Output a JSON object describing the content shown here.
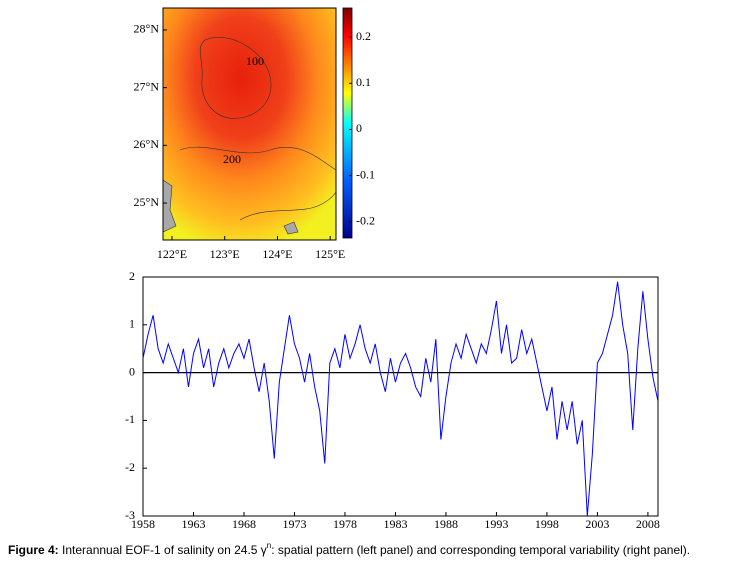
{
  "map": {
    "latlim": [
      24.36,
      28.38
    ],
    "lonlim": [
      121.83,
      125.11
    ],
    "latticks": [
      {
        "value": 28,
        "label": "28°N"
      },
      {
        "value": 27,
        "label": "27°N"
      },
      {
        "value": 26,
        "label": "26°N"
      },
      {
        "value": 25,
        "label": "25°N"
      }
    ],
    "lonticks": [
      {
        "value": 122,
        "label": "122°E"
      },
      {
        "value": 123,
        "label": "123°E"
      },
      {
        "value": 124,
        "label": "124°E"
      },
      {
        "value": 125,
        "label": "125°E"
      }
    ],
    "contour_labels": [
      "100",
      "200"
    ],
    "colorbar": {
      "lim": [
        -0.235,
        0.263
      ],
      "ticks": [
        0.2,
        0.1,
        0,
        -0.1,
        -0.2
      ]
    }
  },
  "chart_data": {
    "type": "line",
    "xlim": [
      1958,
      2009
    ],
    "ylim": [
      -3,
      2
    ],
    "xticks": [
      1958,
      1963,
      1968,
      1973,
      1978,
      1983,
      1988,
      1993,
      1998,
      2003,
      2008
    ],
    "yticks": [
      2,
      1,
      0,
      -1,
      -2,
      -3
    ],
    "series": [
      {
        "color": "#0000ff",
        "x": [
          1958,
          1958.5,
          1959,
          1959.5,
          1960,
          1960.5,
          1961,
          1961.5,
          1962,
          1962.5,
          1963,
          1963.5,
          1964,
          1964.5,
          1965,
          1965.5,
          1966,
          1966.5,
          1967,
          1967.5,
          1968,
          1968.5,
          1969,
          1969.5,
          1970,
          1970.5,
          1971,
          1971.5,
          1972,
          1972.5,
          1973,
          1973.5,
          1974,
          1974.5,
          1975,
          1975.5,
          1976,
          1976.5,
          1977,
          1977.5,
          1978,
          1978.5,
          1979,
          1979.5,
          1980,
          1980.5,
          1981,
          1981.5,
          1982,
          1982.5,
          1983,
          1983.5,
          1984,
          1984.5,
          1985,
          1985.5,
          1986,
          1986.5,
          1987,
          1987.5,
          1988,
          1988.5,
          1989,
          1989.5,
          1990,
          1990.5,
          1991,
          1991.5,
          1992,
          1992.5,
          1993,
          1993.5,
          1994,
          1994.5,
          1995,
          1995.5,
          1996,
          1996.5,
          1997,
          1997.5,
          1998,
          1998.5,
          1999,
          1999.5,
          2000,
          2000.5,
          2001,
          2001.5,
          2002,
          2002.5,
          2003,
          2003.5,
          2004,
          2004.5,
          2005,
          2005.5,
          2006,
          2006.5,
          2007,
          2007.5,
          2008,
          2008.5,
          2009
        ],
        "values": [
          0.3,
          0.8,
          1.2,
          0.5,
          0.2,
          0.6,
          0.3,
          0.0,
          0.5,
          -0.3,
          0.4,
          0.7,
          0.1,
          0.5,
          -0.3,
          0.2,
          0.5,
          0.1,
          0.4,
          0.6,
          0.3,
          0.7,
          0.1,
          -0.4,
          0.2,
          -0.6,
          -1.8,
          -0.2,
          0.5,
          1.2,
          0.6,
          0.3,
          -0.2,
          0.4,
          -0.3,
          -0.8,
          -1.9,
          0.2,
          0.5,
          0.1,
          0.8,
          0.3,
          0.6,
          1.0,
          0.5,
          0.2,
          0.6,
          0.0,
          -0.4,
          0.3,
          -0.2,
          0.2,
          0.4,
          0.1,
          -0.3,
          -0.5,
          0.3,
          -0.2,
          0.7,
          -1.4,
          -0.5,
          0.2,
          0.6,
          0.3,
          0.8,
          0.5,
          0.2,
          0.6,
          0.4,
          0.9,
          1.5,
          0.4,
          1.0,
          0.2,
          0.3,
          0.9,
          0.4,
          0.7,
          0.2,
          -0.3,
          -0.8,
          -0.3,
          -1.4,
          -0.6,
          -1.2,
          -0.6,
          -1.5,
          -1.0,
          -3.0,
          -1.7,
          0.2,
          0.4,
          0.8,
          1.2,
          1.9,
          1.0,
          0.4,
          -1.2,
          0.5,
          1.7,
          0.7,
          -0.1,
          -0.6
        ]
      }
    ]
  },
  "caption": {
    "label": "Figure 4:",
    "text": " Interannual EOF-1 of salinity on 24.5 γ",
    "sup": "n",
    "rest": ": spatial pattern (left panel) and corresponding temporal variability (right panel)."
  }
}
